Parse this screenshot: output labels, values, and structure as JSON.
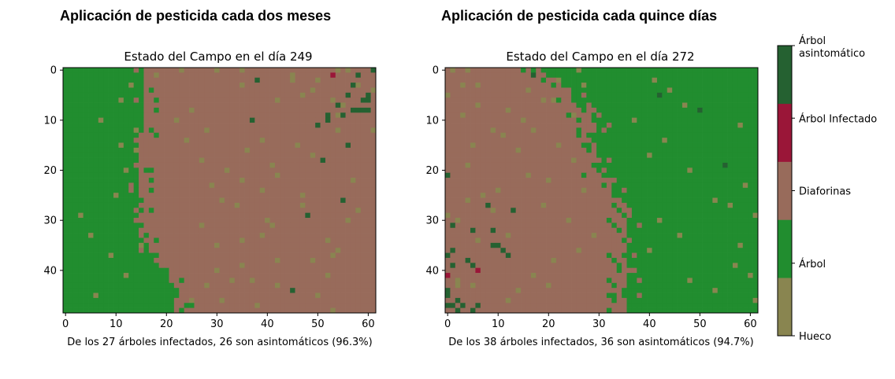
{
  "chart_data": [
    {
      "type": "heatmap",
      "suptitle": "Aplicación de pesticida cada dos meses",
      "title": "Estado del Campo en el día 249",
      "xlabel": "De los 27 árboles infectados, 26 son asintomáticos (96.3%)",
      "grid_size": {
        "cols": 62,
        "rows": 49
      },
      "xlim": [
        -0.5,
        61.5
      ],
      "ylim": [
        48.5,
        -0.5
      ],
      "xticks": [
        0,
        10,
        20,
        30,
        40,
        50,
        60
      ],
      "yticks": [
        0,
        10,
        20,
        30,
        40
      ],
      "state_legend": {
        "0": "Hueco",
        "1": "Árbol",
        "2": "Diaforinas",
        "3": "Árbol Infectado",
        "4": "Árbol asintomático"
      },
      "front_column_by_row": [
        16,
        16,
        16,
        16,
        16,
        16,
        16,
        16,
        16,
        16,
        16,
        16,
        16,
        16,
        16,
        15,
        15,
        15,
        15,
        15,
        15,
        15,
        15,
        15,
        15,
        15,
        15,
        15,
        15,
        15,
        15,
        16,
        16,
        16,
        16,
        17,
        17,
        18,
        18,
        19,
        20,
        21,
        21,
        22,
        22,
        22,
        22,
        23,
        23
      ],
      "scattered_cells": [
        [
          0,
          23,
          0
        ],
        [
          0,
          30,
          0
        ],
        [
          0,
          35,
          0
        ],
        [
          0,
          54,
          0
        ],
        [
          0,
          56,
          0
        ],
        [
          0,
          61,
          4
        ],
        [
          1,
          18,
          0
        ],
        [
          1,
          45,
          0
        ],
        [
          1,
          58,
          4
        ],
        [
          1,
          53,
          3
        ],
        [
          2,
          45,
          0
        ],
        [
          2,
          50,
          0
        ],
        [
          3,
          57,
          4
        ],
        [
          3,
          58,
          0
        ],
        [
          4,
          49,
          0
        ],
        [
          4,
          61,
          0
        ],
        [
          5,
          47,
          0
        ],
        [
          5,
          56,
          4
        ],
        [
          5,
          60,
          4
        ],
        [
          6,
          53,
          0
        ],
        [
          6,
          59,
          4
        ],
        [
          6,
          60,
          4
        ],
        [
          7,
          54,
          4
        ],
        [
          7,
          55,
          0
        ],
        [
          8,
          57,
          4
        ],
        [
          8,
          58,
          4
        ],
        [
          8,
          59,
          4
        ],
        [
          8,
          60,
          4
        ],
        [
          9,
          52,
          4
        ],
        [
          9,
          54,
          0
        ],
        [
          9,
          55,
          4
        ],
        [
          10,
          37,
          4
        ],
        [
          10,
          52,
          4
        ],
        [
          11,
          50,
          4
        ],
        [
          12,
          54,
          0
        ],
        [
          12,
          61,
          0
        ],
        [
          14,
          39,
          0
        ],
        [
          15,
          46,
          0
        ],
        [
          15,
          56,
          4
        ],
        [
          17,
          49,
          0
        ],
        [
          18,
          51,
          4
        ],
        [
          19,
          41,
          0
        ],
        [
          21,
          42,
          0
        ],
        [
          22,
          57,
          0
        ],
        [
          24,
          39,
          0
        ],
        [
          25,
          47,
          0
        ],
        [
          26,
          55,
          4
        ],
        [
          27,
          47,
          0
        ],
        [
          28,
          58,
          0
        ],
        [
          29,
          48,
          4
        ],
        [
          30,
          56,
          0
        ],
        [
          31,
          41,
          0
        ],
        [
          33,
          39,
          0
        ],
        [
          34,
          52,
          0
        ],
        [
          36,
          54,
          0
        ],
        [
          37,
          53,
          0
        ],
        [
          38,
          49,
          0
        ],
        [
          40,
          30,
          0
        ],
        [
          41,
          52,
          0
        ],
        [
          42,
          37,
          0
        ],
        [
          43,
          42,
          0
        ],
        [
          44,
          45,
          4
        ],
        [
          45,
          50,
          0
        ],
        [
          46,
          25,
          0
        ],
        [
          47,
          38,
          0
        ],
        [
          48,
          53,
          0
        ],
        [
          3,
          35,
          0
        ],
        [
          6,
          42,
          0
        ],
        [
          8,
          25,
          0
        ],
        [
          12,
          28,
          0
        ],
        [
          16,
          36,
          0
        ],
        [
          20,
          32,
          0
        ],
        [
          23,
          29,
          0
        ],
        [
          27,
          34,
          0
        ],
        [
          31,
          27,
          0
        ],
        [
          35,
          30,
          0
        ],
        [
          39,
          35,
          0
        ],
        [
          43,
          28,
          0
        ],
        [
          2,
          38,
          4
        ],
        [
          10,
          22,
          0
        ],
        [
          14,
          24,
          0
        ],
        [
          18,
          27,
          0
        ],
        [
          22,
          35,
          0
        ],
        [
          26,
          31,
          0
        ],
        [
          30,
          40,
          0
        ],
        [
          34,
          35,
          0
        ],
        [
          38,
          42,
          0
        ],
        [
          42,
          33,
          0
        ],
        [
          46,
          31,
          0
        ],
        [
          16,
          14,
          0
        ],
        [
          20,
          12,
          0
        ],
        [
          25,
          10,
          0
        ],
        [
          29,
          3,
          0
        ],
        [
          33,
          5,
          0
        ],
        [
          37,
          9,
          0
        ],
        [
          41,
          12,
          0
        ],
        [
          45,
          6,
          0
        ],
        [
          10,
          7,
          0
        ],
        [
          15,
          11,
          0
        ],
        [
          35,
          15,
          0
        ],
        [
          3,
          13,
          0
        ],
        [
          6,
          11,
          0
        ],
        [
          12,
          14,
          0
        ]
      ]
    },
    {
      "type": "heatmap",
      "suptitle": "Aplicación de pesticida cada quince días",
      "title": "Estado del Campo en el día 272",
      "xlabel": "De los 38 árboles infectados, 36 son asintomáticos (94.7%)",
      "grid_size": {
        "cols": 62,
        "rows": 49
      },
      "xlim": [
        -0.5,
        61.5
      ],
      "ylim": [
        48.5,
        -0.5
      ],
      "xticks": [
        0,
        10,
        20,
        30,
        40,
        50,
        60
      ],
      "yticks": [
        0,
        10,
        20,
        30,
        40
      ],
      "state_legend": {
        "0": "Hueco",
        "1": "Árbol",
        "2": "Diaforinas",
        "3": "Árbol Infectado",
        "4": "Árbol asintomático"
      },
      "front_column_by_row": [
        18,
        18,
        18,
        18,
        18,
        18,
        18,
        18,
        18,
        18,
        18,
        18,
        18,
        18,
        18,
        18,
        18,
        18,
        18,
        18,
        18,
        18,
        18,
        18,
        18,
        18,
        18,
        18,
        18,
        18,
        18,
        18,
        18,
        18,
        18,
        18,
        18,
        18,
        18,
        18,
        18,
        18,
        18,
        18,
        18,
        18,
        18,
        18,
        18
      ],
      "boundary_column_by_row": [
        18,
        19,
        20,
        22,
        23,
        24,
        24,
        25,
        26,
        27,
        28,
        29,
        29,
        29,
        29,
        29,
        29,
        29,
        29,
        29,
        29,
        30,
        31,
        32,
        33,
        33,
        34,
        34,
        35,
        35,
        35,
        35,
        35,
        35,
        35,
        35,
        35,
        35,
        35,
        35,
        35,
        35,
        35,
        35,
        35,
        35,
        35,
        35,
        35
      ],
      "scattered_cells": [
        [
          0,
          1,
          0
        ],
        [
          0,
          4,
          0
        ],
        [
          1,
          17,
          4
        ],
        [
          2,
          22,
          0
        ],
        [
          3,
          3,
          0
        ],
        [
          3,
          6,
          0
        ],
        [
          4,
          16,
          0
        ],
        [
          5,
          0,
          0
        ],
        [
          6,
          21,
          0
        ],
        [
          7,
          6,
          0
        ],
        [
          8,
          12,
          0
        ],
        [
          9,
          3,
          0
        ],
        [
          10,
          15,
          0
        ],
        [
          12,
          9,
          0
        ],
        [
          13,
          11,
          0
        ],
        [
          15,
          5,
          0
        ],
        [
          16,
          14,
          0
        ],
        [
          19,
          4,
          0
        ],
        [
          21,
          0,
          4
        ],
        [
          22,
          20,
          0
        ],
        [
          24,
          10,
          0
        ],
        [
          25,
          7,
          0
        ],
        [
          26,
          4,
          0
        ],
        [
          27,
          8,
          4
        ],
        [
          28,
          9,
          0
        ],
        [
          28,
          13,
          4
        ],
        [
          29,
          0,
          0
        ],
        [
          30,
          2,
          0
        ],
        [
          31,
          1,
          4
        ],
        [
          32,
          5,
          4
        ],
        [
          32,
          9,
          4
        ],
        [
          33,
          12,
          0
        ],
        [
          34,
          6,
          0
        ],
        [
          35,
          9,
          4
        ],
        [
          35,
          10,
          4
        ],
        [
          36,
          1,
          4
        ],
        [
          36,
          11,
          4
        ],
        [
          37,
          12,
          4
        ],
        [
          37,
          0,
          4
        ],
        [
          38,
          4,
          4
        ],
        [
          39,
          1,
          4
        ],
        [
          39,
          5,
          4
        ],
        [
          40,
          6,
          3
        ],
        [
          41,
          0,
          3
        ],
        [
          42,
          2,
          0
        ],
        [
          43,
          2,
          0
        ],
        [
          43,
          5,
          0
        ],
        [
          44,
          0,
          4
        ],
        [
          45,
          0,
          4
        ],
        [
          46,
          2,
          4
        ],
        [
          47,
          0,
          4
        ],
        [
          47,
          1,
          4
        ],
        [
          47,
          3,
          4
        ],
        [
          48,
          2,
          4
        ],
        [
          48,
          5,
          4
        ],
        [
          47,
          6,
          4
        ],
        [
          46,
          12,
          0
        ],
        [
          44,
          14,
          0
        ],
        [
          43,
          20,
          0
        ],
        [
          41,
          17,
          0
        ],
        [
          38,
          21,
          0
        ],
        [
          36,
          26,
          0
        ],
        [
          33,
          29,
          0
        ],
        [
          30,
          24,
          0
        ],
        [
          27,
          19,
          0
        ],
        [
          24,
          27,
          0
        ],
        [
          21,
          16,
          0
        ],
        [
          18,
          25,
          0
        ],
        [
          15,
          22,
          0
        ],
        [
          12,
          17,
          0
        ],
        [
          9,
          25,
          0
        ],
        [
          6,
          19,
          0
        ],
        [
          3,
          27,
          0
        ],
        [
          0,
          26,
          0
        ],
        [
          2,
          41,
          0
        ],
        [
          4,
          44,
          0
        ],
        [
          7,
          47,
          0
        ],
        [
          10,
          37,
          0
        ],
        [
          14,
          43,
          0
        ],
        [
          17,
          40,
          0
        ],
        [
          19,
          55,
          4
        ],
        [
          20,
          48,
          0
        ],
        [
          23,
          59,
          0
        ],
        [
          26,
          53,
          0
        ],
        [
          27,
          56,
          0
        ],
        [
          30,
          42,
          0
        ],
        [
          33,
          46,
          0
        ],
        [
          36,
          40,
          0
        ],
        [
          39,
          57,
          0
        ],
        [
          42,
          48,
          0
        ],
        [
          44,
          53,
          0
        ],
        [
          46,
          61,
          0
        ],
        [
          41,
          60,
          0
        ],
        [
          35,
          58,
          0
        ],
        [
          29,
          61,
          0
        ],
        [
          11,
          58,
          0
        ],
        [
          8,
          50,
          4
        ],
        [
          5,
          42,
          4
        ]
      ]
    }
  ],
  "colorbar": {
    "labels": [
      "Hueco",
      "Árbol",
      "Diaforinas",
      "Árbol Infectado",
      "Árbol\nasintomático"
    ],
    "colors": [
      "#898550",
      "#218d2f",
      "#986b5b",
      "#9a1638",
      "#256131"
    ]
  },
  "state_colors": {
    "hole": "#898550",
    "tree": "#218d2f",
    "psyllids": "#986b5b",
    "infected": "#9a1638",
    "asymptomatic": "#256131"
  }
}
